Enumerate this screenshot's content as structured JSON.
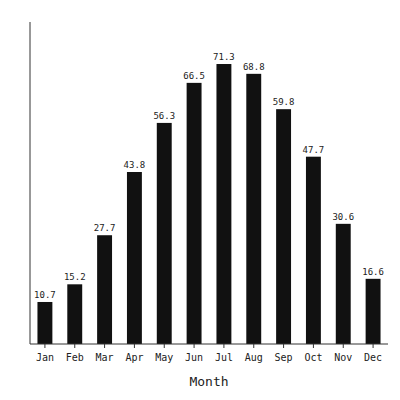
{
  "chart_data": {
    "type": "bar",
    "xlabel": "Month",
    "categories": [
      "Jan",
      "Feb",
      "Mar",
      "Apr",
      "May",
      "Jun",
      "Jul",
      "Aug",
      "Sep",
      "Oct",
      "Nov",
      "Dec"
    ],
    "values": [
      10.7,
      15.2,
      27.7,
      43.8,
      56.3,
      66.5,
      71.3,
      68.8,
      59.8,
      47.7,
      30.6,
      16.6
    ],
    "color": "#111111",
    "ylim": [
      0,
      82
    ],
    "data_labels": true,
    "tick_labels": "x",
    "grid": false
  }
}
